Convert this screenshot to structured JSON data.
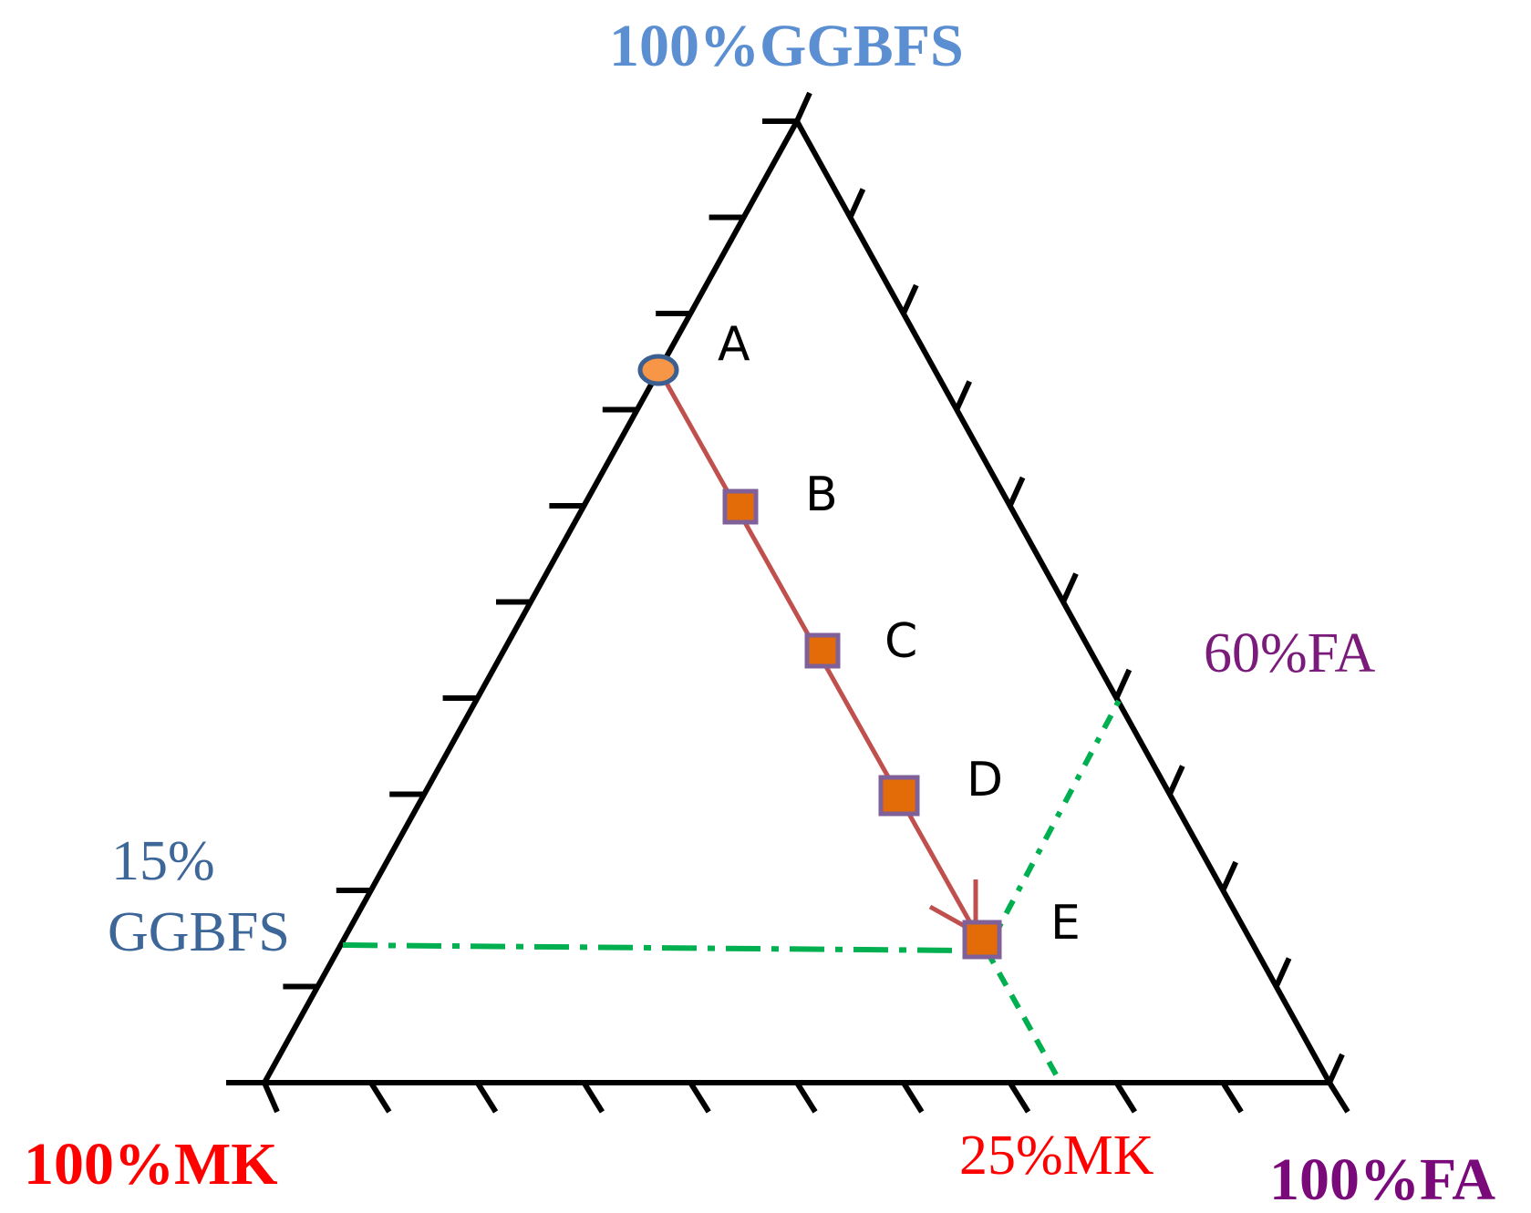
{
  "labels": {
    "top_vertex": "100%GGBFS",
    "left_vertex": "100%MK",
    "right_vertex": "100%FA",
    "ggbfs_line": [
      "15%",
      "GGBFS"
    ],
    "fa_line": "60%FA",
    "mk_line": "25%MK"
  },
  "points": [
    {
      "id": "A",
      "shape": "circle"
    },
    {
      "id": "B",
      "shape": "square"
    },
    {
      "id": "C",
      "shape": "square"
    },
    {
      "id": "D",
      "shape": "square"
    },
    {
      "id": "E",
      "shape": "square"
    }
  ],
  "colors": {
    "ggbfs_label": "#5b8fd1",
    "ggbfs_15_label": "#3d6699",
    "mk_label": "#ff0000",
    "fa_label_top": "#7a1a7a",
    "fa_label_corner": "#7a0a7a",
    "path_arrow": "#c0504d",
    "marker_fill": "#e36c09",
    "marker_stroke": "#7f6099",
    "circle_fill": "#f79646",
    "circle_stroke": "#3b5f91",
    "guide_line": "#00b050",
    "frame": "#000000"
  }
}
